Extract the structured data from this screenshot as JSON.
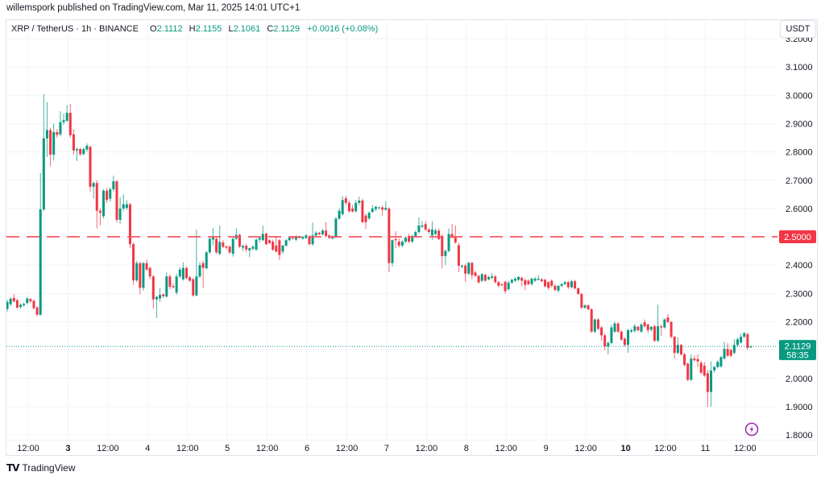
{
  "header": {
    "published_text": "willemspork published on TradingView.com, Mar 11, 2025 14:01 UTC+1"
  },
  "legend": {
    "symbol": "XRP / TetherUS · 1h · BINANCE",
    "open_label": "O",
    "open": "2.1112",
    "high_label": "H",
    "high": "2.1155",
    "low_label": "L",
    "low": "2.1061",
    "close_label": "C",
    "close": "2.1129",
    "change": "+0.0016 (+0.08%)"
  },
  "currency_button": {
    "label": "USDT"
  },
  "footer": {
    "logo_mark": "TV",
    "logo_text": "TradingView"
  },
  "colors": {
    "up": "#089981",
    "down": "#f23645",
    "grid": "#f0f3fa",
    "axis_text": "#131722",
    "alert_icon": "#9c27b0"
  },
  "chart_data": {
    "type": "candlestick",
    "title": "XRP / TetherUS · 1h · BINANCE",
    "xlabel": "",
    "ylabel": "USDT",
    "ylim": [
      1.8,
      3.2
    ],
    "grid": true,
    "y_ticks": [
      "1.8000",
      "1.9000",
      "2.0000",
      "2.1000",
      "2.2000",
      "2.3000",
      "2.4000",
      "2.5000",
      "2.6000",
      "2.7000",
      "2.8000",
      "2.9000",
      "3.0000",
      "3.1000",
      "3.2000"
    ],
    "x_ticks": [
      {
        "label": "12:00",
        "bold": false
      },
      {
        "label": "3",
        "bold": true
      },
      {
        "label": "12:00",
        "bold": false
      },
      {
        "label": "4",
        "bold": false
      },
      {
        "label": "12:00",
        "bold": false
      },
      {
        "label": "5",
        "bold": false
      },
      {
        "label": "12:00",
        "bold": false
      },
      {
        "label": "6",
        "bold": false
      },
      {
        "label": "12:00",
        "bold": false
      },
      {
        "label": "7",
        "bold": false
      },
      {
        "label": "12:00",
        "bold": false
      },
      {
        "label": "8",
        "bold": false
      },
      {
        "label": "12:00",
        "bold": false
      },
      {
        "label": "9",
        "bold": false
      },
      {
        "label": "12:00",
        "bold": false
      },
      {
        "label": "10",
        "bold": true
      },
      {
        "label": "12:00",
        "bold": false
      },
      {
        "label": "11",
        "bold": false
      },
      {
        "label": "12:00",
        "bold": false
      }
    ],
    "horizontal_line": {
      "price": 2.5,
      "label": "2.5000",
      "style": "dashed",
      "color": "#f23645"
    },
    "last_price": {
      "price": 2.1129,
      "label": "2.1129",
      "countdown": "58:35",
      "color": "#089981"
    },
    "candle_format": [
      "open",
      "high",
      "low",
      "close"
    ],
    "candles": [
      [
        2.245,
        2.278,
        2.236,
        2.27
      ],
      [
        2.262,
        2.287,
        2.255,
        2.281
      ],
      [
        2.284,
        2.298,
        2.268,
        2.272
      ],
      [
        2.276,
        2.282,
        2.246,
        2.25
      ],
      [
        2.252,
        2.265,
        2.246,
        2.26
      ],
      [
        2.258,
        2.268,
        2.253,
        2.263
      ],
      [
        2.266,
        2.288,
        2.262,
        2.282
      ],
      [
        2.28,
        2.284,
        2.266,
        2.272
      ],
      [
        2.274,
        2.278,
        2.244,
        2.248
      ],
      [
        2.25,
        2.256,
        2.22,
        2.225
      ],
      [
        2.225,
        2.725,
        2.222,
        2.597
      ],
      [
        2.597,
        3.004,
        2.59,
        2.848
      ],
      [
        2.848,
        2.976,
        2.782,
        2.877
      ],
      [
        2.877,
        2.885,
        2.749,
        2.79
      ],
      [
        2.79,
        2.9,
        2.77,
        2.87
      ],
      [
        2.87,
        2.88,
        2.85,
        2.86
      ],
      [
        2.862,
        2.944,
        2.855,
        2.905
      ],
      [
        2.905,
        2.935,
        2.895,
        2.912
      ],
      [
        2.91,
        2.965,
        2.905,
        2.938
      ],
      [
        2.938,
        2.97,
        2.85,
        2.859
      ],
      [
        2.862,
        2.88,
        2.79,
        2.805
      ],
      [
        2.805,
        2.815,
        2.768,
        2.81
      ],
      [
        2.81,
        2.815,
        2.785,
        2.792
      ],
      [
        2.792,
        2.815,
        2.788,
        2.81
      ],
      [
        2.808,
        2.83,
        2.8,
        2.822
      ],
      [
        2.818,
        2.822,
        2.66,
        2.677
      ],
      [
        2.677,
        2.695,
        2.635,
        2.69
      ],
      [
        2.69,
        2.7,
        2.53,
        2.592
      ],
      [
        2.592,
        2.6,
        2.54,
        2.585
      ],
      [
        2.573,
        2.668,
        2.565,
        2.663
      ],
      [
        2.663,
        2.672,
        2.62,
        2.63
      ],
      [
        2.635,
        2.675,
        2.625,
        2.668
      ],
      [
        2.668,
        2.716,
        2.66,
        2.696
      ],
      [
        2.696,
        2.7,
        2.55,
        2.56
      ],
      [
        2.56,
        2.64,
        2.545,
        2.6
      ],
      [
        2.6,
        2.65,
        2.59,
        2.615
      ],
      [
        2.602,
        2.63,
        2.595,
        2.615
      ],
      [
        2.615,
        2.62,
        2.46,
        2.474
      ],
      [
        2.474,
        2.48,
        2.33,
        2.346
      ],
      [
        2.346,
        2.415,
        2.34,
        2.407
      ],
      [
        2.407,
        2.412,
        2.298,
        2.32
      ],
      [
        2.32,
        2.412,
        2.31,
        2.407
      ],
      [
        2.407,
        2.42,
        2.38,
        2.384
      ],
      [
        2.39,
        2.395,
        2.35,
        2.36
      ],
      [
        2.36,
        2.365,
        2.247,
        2.279
      ],
      [
        2.279,
        2.292,
        2.213,
        2.288
      ],
      [
        2.282,
        2.32,
        2.27,
        2.295
      ],
      [
        2.297,
        2.3,
        2.285,
        2.29
      ],
      [
        2.289,
        2.375,
        2.285,
        2.36
      ],
      [
        2.36,
        2.368,
        2.315,
        2.324
      ],
      [
        2.326,
        2.335,
        2.318,
        2.322
      ],
      [
        2.303,
        2.37,
        2.295,
        2.36
      ],
      [
        2.36,
        2.392,
        2.355,
        2.384
      ],
      [
        2.35,
        2.41,
        2.345,
        2.39
      ],
      [
        2.39,
        2.395,
        2.35,
        2.355
      ],
      [
        2.357,
        2.362,
        2.34,
        2.345
      ],
      [
        2.35,
        2.355,
        2.288,
        2.293
      ],
      [
        2.293,
        2.525,
        2.29,
        2.36
      ],
      [
        2.36,
        2.41,
        2.355,
        2.4
      ],
      [
        2.407,
        2.415,
        2.32,
        2.39
      ],
      [
        2.389,
        2.45,
        2.385,
        2.445
      ],
      [
        2.445,
        2.5,
        2.44,
        2.493
      ],
      [
        2.49,
        2.53,
        2.47,
        2.497
      ],
      [
        2.493,
        2.5,
        2.44,
        2.445
      ],
      [
        2.44,
        2.54,
        2.435,
        2.482
      ],
      [
        2.48,
        2.488,
        2.46,
        2.465
      ],
      [
        2.466,
        2.47,
        2.455,
        2.462
      ],
      [
        2.465,
        2.47,
        2.44,
        2.445
      ],
      [
        2.44,
        2.5,
        2.43,
        2.493
      ],
      [
        2.493,
        2.53,
        2.488,
        2.507
      ],
      [
        2.507,
        2.512,
        2.46,
        2.465
      ],
      [
        2.462,
        2.472,
        2.45,
        2.468
      ],
      [
        2.468,
        2.475,
        2.445,
        2.455
      ],
      [
        2.452,
        2.462,
        2.428,
        2.46
      ],
      [
        2.458,
        2.47,
        2.452,
        2.465
      ],
      [
        2.455,
        2.495,
        2.45,
        2.49
      ],
      [
        2.49,
        2.5,
        2.48,
        2.496
      ],
      [
        2.488,
        2.54,
        2.485,
        2.51
      ],
      [
        2.511,
        2.515,
        2.47,
        2.474
      ],
      [
        2.488,
        2.492,
        2.475,
        2.478
      ],
      [
        2.483,
        2.49,
        2.45,
        2.455
      ],
      [
        2.469,
        2.503,
        2.445,
        2.448
      ],
      [
        2.488,
        2.492,
        2.419,
        2.436
      ],
      [
        2.448,
        2.472,
        2.44,
        2.469
      ],
      [
        2.469,
        2.492,
        2.465,
        2.488
      ],
      [
        2.488,
        2.5,
        2.484,
        2.497
      ],
      [
        2.497,
        2.502,
        2.49,
        2.494
      ],
      [
        2.49,
        2.505,
        2.486,
        2.5
      ],
      [
        2.5,
        2.504,
        2.493,
        2.496
      ],
      [
        2.494,
        2.503,
        2.489,
        2.5
      ],
      [
        2.496,
        2.51,
        2.492,
        2.505
      ],
      [
        2.5,
        2.506,
        2.47,
        2.474
      ],
      [
        2.474,
        2.55,
        2.468,
        2.505
      ],
      [
        2.505,
        2.52,
        2.5,
        2.514
      ],
      [
        2.514,
        2.518,
        2.506,
        2.509
      ],
      [
        2.509,
        2.528,
        2.505,
        2.522
      ],
      [
        2.522,
        2.552,
        2.498,
        2.503
      ],
      [
        2.505,
        2.51,
        2.492,
        2.496
      ],
      [
        2.494,
        2.505,
        2.49,
        2.5
      ],
      [
        2.5,
        2.57,
        2.496,
        2.564
      ],
      [
        2.564,
        2.6,
        2.56,
        2.592
      ],
      [
        2.58,
        2.644,
        2.575,
        2.63
      ],
      [
        2.636,
        2.645,
        2.612,
        2.62
      ],
      [
        2.62,
        2.628,
        2.585,
        2.59
      ],
      [
        2.6,
        2.612,
        2.585,
        2.59
      ],
      [
        2.59,
        2.63,
        2.586,
        2.62
      ],
      [
        2.62,
        2.642,
        2.612,
        2.628
      ],
      [
        2.628,
        2.635,
        2.548,
        2.552
      ],
      [
        2.575,
        2.582,
        2.528,
        2.552
      ],
      [
        2.565,
        2.59,
        2.56,
        2.585
      ],
      [
        2.588,
        2.612,
        2.584,
        2.6
      ],
      [
        2.598,
        2.61,
        2.59,
        2.606
      ],
      [
        2.602,
        2.606,
        2.598,
        2.604
      ],
      [
        2.604,
        2.61,
        2.575,
        2.596
      ],
      [
        2.596,
        2.625,
        2.592,
        2.602
      ],
      [
        2.6,
        2.604,
        2.375,
        2.407
      ],
      [
        2.407,
        2.49,
        2.395,
        2.488
      ],
      [
        2.492,
        2.52,
        2.46,
        2.488
      ],
      [
        2.483,
        2.495,
        2.462,
        2.469
      ],
      [
        2.469,
        2.488,
        2.462,
        2.483
      ],
      [
        2.483,
        2.502,
        2.478,
        2.497
      ],
      [
        2.503,
        2.51,
        2.478,
        2.483
      ],
      [
        2.483,
        2.508,
        2.478,
        2.503
      ],
      [
        2.503,
        2.522,
        2.498,
        2.517
      ],
      [
        2.517,
        2.568,
        2.512,
        2.54
      ],
      [
        2.536,
        2.555,
        2.53,
        2.54
      ],
      [
        2.545,
        2.555,
        2.52,
        2.526
      ],
      [
        2.526,
        2.53,
        2.512,
        2.517
      ],
      [
        2.505,
        2.555,
        2.49,
        2.526
      ],
      [
        2.51,
        2.53,
        2.505,
        2.522
      ],
      [
        2.522,
        2.53,
        2.488,
        2.492
      ],
      [
        2.503,
        2.51,
        2.389,
        2.432
      ],
      [
        2.432,
        2.455,
        2.4,
        2.45
      ],
      [
        2.45,
        2.53,
        2.445,
        2.51
      ],
      [
        2.51,
        2.545,
        2.495,
        2.497
      ],
      [
        2.497,
        2.54,
        2.475,
        2.48
      ],
      [
        2.47,
        2.48,
        2.375,
        2.398
      ],
      [
        2.394,
        2.402,
        2.39,
        2.398
      ],
      [
        2.398,
        2.405,
        2.341,
        2.37
      ],
      [
        2.37,
        2.412,
        2.365,
        2.408
      ],
      [
        2.408,
        2.412,
        2.35,
        2.365
      ],
      [
        2.374,
        2.38,
        2.358,
        2.362
      ],
      [
        2.362,
        2.366,
        2.335,
        2.339
      ],
      [
        2.345,
        2.372,
        2.34,
        2.368
      ],
      [
        2.366,
        2.37,
        2.342,
        2.345
      ],
      [
        2.35,
        2.362,
        2.346,
        2.358
      ],
      [
        2.355,
        2.372,
        2.35,
        2.36
      ],
      [
        2.36,
        2.365,
        2.335,
        2.34
      ],
      [
        2.34,
        2.344,
        2.322,
        2.327
      ],
      [
        2.332,
        2.336,
        2.325,
        2.33
      ],
      [
        2.341,
        2.345,
        2.3,
        2.308
      ],
      [
        2.315,
        2.345,
        2.31,
        2.338
      ],
      [
        2.338,
        2.352,
        2.334,
        2.348
      ],
      [
        2.345,
        2.358,
        2.34,
        2.352
      ],
      [
        2.348,
        2.362,
        2.344,
        2.358
      ],
      [
        2.355,
        2.36,
        2.325,
        2.345
      ],
      [
        2.347,
        2.352,
        2.312,
        2.33
      ],
      [
        2.345,
        2.35,
        2.328,
        2.333
      ],
      [
        2.333,
        2.355,
        2.328,
        2.352
      ],
      [
        2.345,
        2.358,
        2.341,
        2.352
      ],
      [
        2.348,
        2.365,
        2.345,
        2.352
      ],
      [
        2.35,
        2.354,
        2.34,
        2.343
      ],
      [
        2.348,
        2.352,
        2.322,
        2.325
      ],
      [
        2.34,
        2.344,
        2.312,
        2.32
      ],
      [
        2.345,
        2.35,
        2.322,
        2.327
      ],
      [
        2.327,
        2.332,
        2.308,
        2.312
      ],
      [
        2.31,
        2.33,
        2.303,
        2.327
      ],
      [
        2.327,
        2.336,
        2.322,
        2.333
      ],
      [
        2.333,
        2.343,
        2.33,
        2.34
      ],
      [
        2.34,
        2.344,
        2.316,
        2.322
      ],
      [
        2.322,
        2.348,
        2.318,
        2.343
      ],
      [
        2.343,
        2.348,
        2.314,
        2.318
      ],
      [
        2.318,
        2.322,
        2.295,
        2.298
      ],
      [
        2.298,
        2.302,
        2.245,
        2.25
      ],
      [
        2.25,
        2.262,
        2.246,
        2.258
      ],
      [
        2.258,
        2.262,
        2.24,
        2.244
      ],
      [
        2.244,
        2.248,
        2.16,
        2.165
      ],
      [
        2.165,
        2.212,
        2.16,
        2.208
      ],
      [
        2.208,
        2.212,
        2.17,
        2.175
      ],
      [
        2.18,
        2.184,
        2.133,
        2.152
      ],
      [
        2.152,
        2.158,
        2.099,
        2.113
      ],
      [
        2.113,
        2.13,
        2.085,
        2.125
      ],
      [
        2.125,
        2.19,
        2.12,
        2.18
      ],
      [
        2.165,
        2.2,
        2.16,
        2.194
      ],
      [
        2.194,
        2.198,
        2.16,
        2.165
      ],
      [
        2.165,
        2.17,
        2.132,
        2.137
      ],
      [
        2.14,
        2.145,
        2.112,
        2.118
      ],
      [
        2.118,
        2.175,
        2.09,
        2.17
      ],
      [
        2.165,
        2.176,
        2.16,
        2.17
      ],
      [
        2.168,
        2.192,
        2.162,
        2.184
      ],
      [
        2.182,
        2.186,
        2.165,
        2.17
      ],
      [
        2.165,
        2.195,
        2.16,
        2.19
      ],
      [
        2.198,
        2.208,
        2.18,
        2.184
      ],
      [
        2.19,
        2.194,
        2.16,
        2.17
      ],
      [
        2.172,
        2.185,
        2.165,
        2.182
      ],
      [
        2.184,
        2.19,
        2.128,
        2.133
      ],
      [
        2.133,
        2.26,
        2.128,
        2.184
      ],
      [
        2.184,
        2.19,
        2.15,
        2.18
      ],
      [
        2.18,
        2.212,
        2.176,
        2.208
      ],
      [
        2.215,
        2.227,
        2.195,
        2.199
      ],
      [
        2.199,
        2.203,
        2.14,
        2.147
      ],
      [
        2.147,
        2.15,
        2.07,
        2.09
      ],
      [
        2.09,
        2.145,
        2.085,
        2.118
      ],
      [
        2.118,
        2.122,
        2.08,
        2.085
      ],
      [
        2.085,
        2.09,
        2.042,
        2.047
      ],
      [
        2.052,
        2.056,
        1.99,
        1.995
      ],
      [
        1.995,
        2.085,
        1.99,
        2.07
      ],
      [
        2.07,
        2.08,
        2.06,
        2.064
      ],
      [
        2.068,
        2.085,
        2.04,
        2.06
      ],
      [
        2.055,
        2.062,
        2.015,
        2.02
      ],
      [
        2.045,
        2.058,
        2.005,
        2.01
      ],
      [
        2.018,
        2.03,
        1.9,
        1.952
      ],
      [
        1.952,
        2.06,
        1.9,
        2.028
      ],
      [
        2.028,
        2.045,
        2.02,
        2.04
      ],
      [
        2.04,
        2.065,
        2.035,
        2.058
      ],
      [
        2.042,
        2.08,
        2.038,
        2.075
      ],
      [
        2.07,
        2.13,
        2.066,
        2.104
      ],
      [
        2.104,
        2.125,
        2.075,
        2.08
      ],
      [
        2.1,
        2.105,
        2.075,
        2.08
      ],
      [
        2.09,
        2.138,
        2.085,
        2.118
      ],
      [
        2.118,
        2.145,
        2.112,
        2.138
      ],
      [
        2.127,
        2.158,
        2.122,
        2.147
      ],
      [
        2.147,
        2.163,
        2.142,
        2.16
      ],
      [
        2.156,
        2.162,
        2.1,
        2.108
      ],
      [
        2.1112,
        2.1155,
        2.1061,
        2.1129
      ]
    ]
  }
}
